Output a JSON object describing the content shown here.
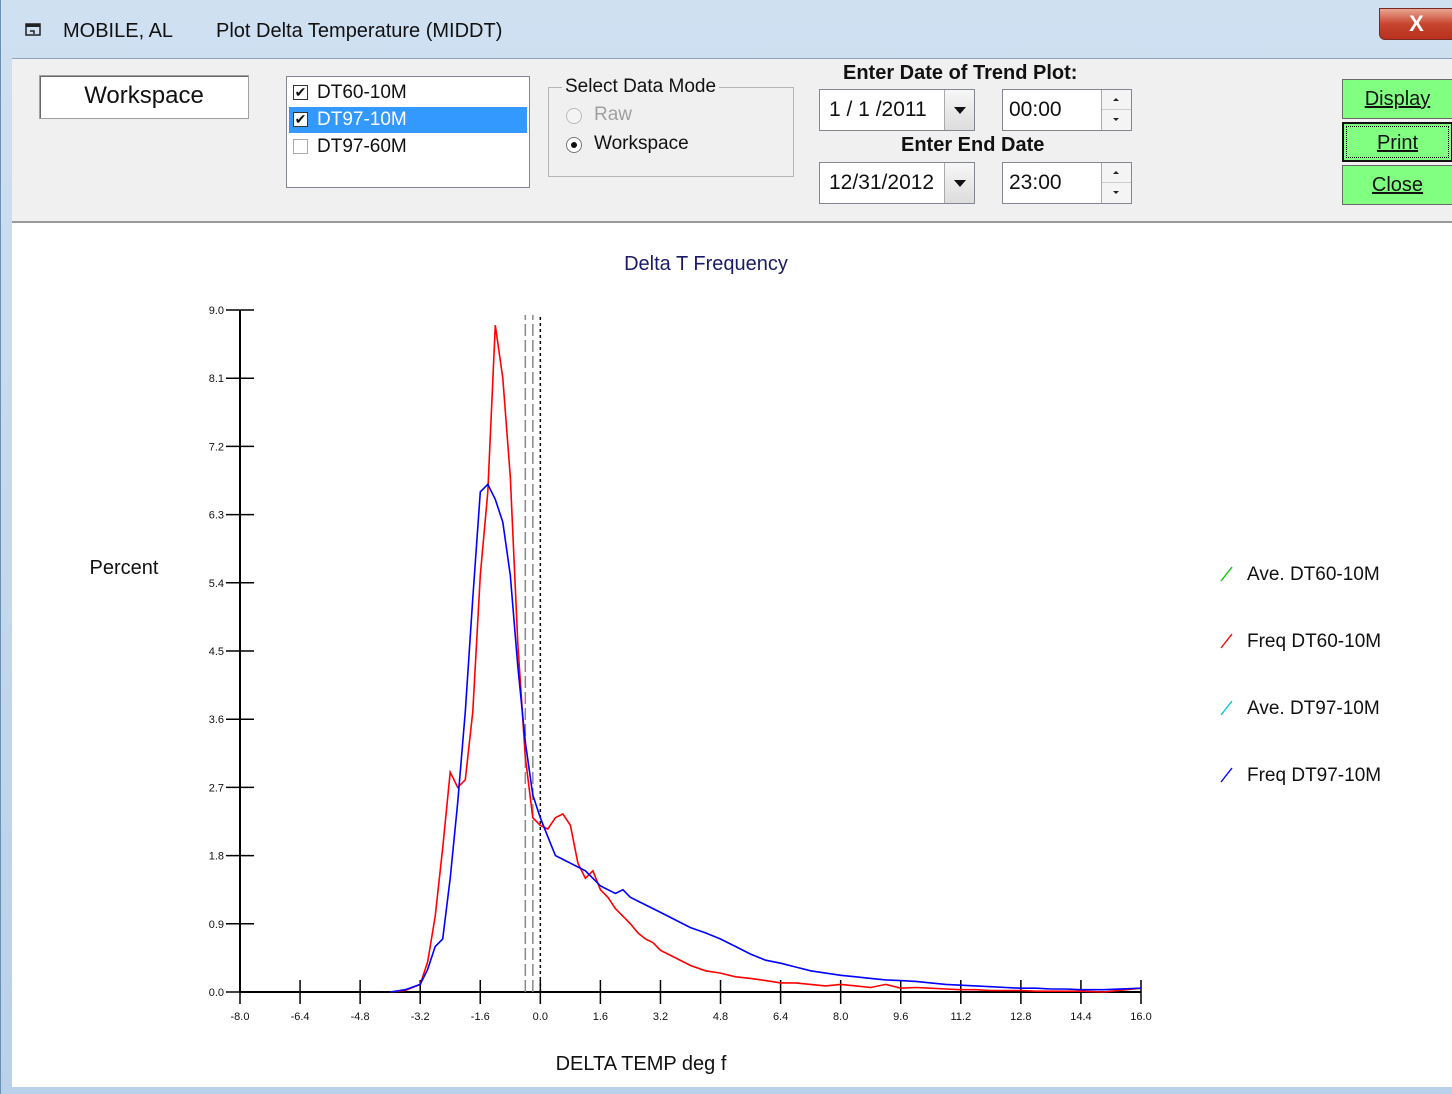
{
  "window": {
    "city": "MOBILE, AL",
    "title": "Plot Delta Temperature (MIDDT)",
    "close_label": "X"
  },
  "workspace_label": "Workspace",
  "datasets": [
    {
      "label": "DT60-10M",
      "checked": true,
      "selected": false
    },
    {
      "label": "DT97-10M",
      "checked": true,
      "selected": true
    },
    {
      "label": "DT97-60M",
      "checked": false,
      "selected": false
    }
  ],
  "data_mode": {
    "title": "Select Data Mode",
    "options": [
      {
        "label": "Raw",
        "selected": false,
        "enabled": false
      },
      {
        "label": "Workspace",
        "selected": true,
        "enabled": true
      }
    ]
  },
  "dates": {
    "start_label": "Enter Date of Trend Plot:",
    "start_date": "1 / 1 /2011",
    "start_time": "00:00",
    "end_label": "Enter End Date",
    "end_date": "12/31/2012",
    "end_time": "23:00"
  },
  "buttons": {
    "display": "Display",
    "print": "Print",
    "close": "Close",
    "button_color": "#80ff80"
  },
  "chart_data": {
    "type": "line",
    "title": "Delta T Frequency",
    "xlabel": "DELTA TEMP deg f",
    "ylabel": "Percent",
    "xlim": [
      -8.0,
      16.0
    ],
    "ylim": [
      0.0,
      9.0
    ],
    "xticks": [
      "-8.0",
      "-6.4",
      "-4.8",
      "-3.2",
      "-1.6",
      "0.0",
      "1.6",
      "3.2",
      "4.8",
      "6.4",
      "8.0",
      "9.6",
      "11.2",
      "12.8",
      "14.4",
      "16.0"
    ],
    "yticks": [
      "0.0",
      "0.9",
      "1.8",
      "2.7",
      "3.6",
      "4.5",
      "5.4",
      "6.3",
      "7.2",
      "8.1",
      "9.0"
    ],
    "legend_position": "right",
    "series": [
      {
        "name": "Ave. DT60-10M",
        "color": "#00cc00",
        "type": "vline",
        "x": -0.3
      },
      {
        "name": "Freq DT60-10M",
        "color": "#ff0000",
        "type": "line",
        "x": [
          -4.0,
          -3.6,
          -3.2,
          -3.0,
          -2.8,
          -2.6,
          -2.4,
          -2.2,
          -2.0,
          -1.8,
          -1.6,
          -1.4,
          -1.2,
          -1.0,
          -0.8,
          -0.6,
          -0.4,
          -0.2,
          0.0,
          0.2,
          0.4,
          0.6,
          0.8,
          1.0,
          1.2,
          1.4,
          1.6,
          1.8,
          2.0,
          2.2,
          2.4,
          2.6,
          2.8,
          3.0,
          3.2,
          3.6,
          4.0,
          4.4,
          4.8,
          5.2,
          5.6,
          6.0,
          6.4,
          6.8,
          7.2,
          7.6,
          8.0,
          8.4,
          8.8,
          9.2,
          9.6,
          10.0,
          10.4,
          10.8,
          11.2,
          11.6,
          12.0,
          12.4,
          12.8,
          13.2,
          13.6,
          14.0,
          14.4,
          15.0,
          16.0
        ],
        "values": [
          0.0,
          0.02,
          0.1,
          0.4,
          1.0,
          1.9,
          2.9,
          2.7,
          2.8,
          3.7,
          5.5,
          6.6,
          8.8,
          8.1,
          6.8,
          4.6,
          3.1,
          2.3,
          2.2,
          2.15,
          2.3,
          2.35,
          2.2,
          1.7,
          1.5,
          1.6,
          1.35,
          1.25,
          1.1,
          1.0,
          0.9,
          0.78,
          0.7,
          0.65,
          0.55,
          0.45,
          0.35,
          0.28,
          0.25,
          0.2,
          0.18,
          0.15,
          0.12,
          0.12,
          0.1,
          0.08,
          0.1,
          0.08,
          0.06,
          0.1,
          0.05,
          0.06,
          0.05,
          0.04,
          0.03,
          0.03,
          0.02,
          0.02,
          0.02,
          0.01,
          0.01,
          0.01,
          0.01,
          0.0,
          0.05
        ]
      },
      {
        "name": "Ave. DT97-10M",
        "color": "#00cccc",
        "type": "vline",
        "x": -0.1
      },
      {
        "name": "Freq DT97-10M",
        "color": "#0000ff",
        "type": "line",
        "x": [
          -4.0,
          -3.6,
          -3.2,
          -3.0,
          -2.8,
          -2.6,
          -2.4,
          -2.2,
          -2.0,
          -1.8,
          -1.6,
          -1.4,
          -1.2,
          -1.0,
          -0.8,
          -0.6,
          -0.4,
          -0.2,
          0.0,
          0.2,
          0.4,
          0.6,
          0.8,
          1.0,
          1.2,
          1.4,
          1.6,
          1.8,
          2.0,
          2.2,
          2.4,
          2.6,
          2.8,
          3.0,
          3.2,
          3.6,
          4.0,
          4.4,
          4.8,
          5.2,
          5.6,
          6.0,
          6.4,
          6.8,
          7.2,
          7.6,
          8.0,
          8.4,
          8.8,
          9.2,
          9.6,
          10.0,
          10.4,
          10.8,
          11.2,
          11.6,
          12.0,
          12.4,
          12.8,
          13.2,
          13.6,
          14.0,
          14.4,
          15.0,
          16.0
        ],
        "values": [
          0.0,
          0.03,
          0.1,
          0.3,
          0.6,
          0.7,
          1.5,
          2.5,
          3.7,
          5.2,
          6.6,
          6.7,
          6.5,
          6.2,
          5.5,
          4.3,
          3.3,
          2.6,
          2.3,
          2.05,
          1.8,
          1.75,
          1.7,
          1.65,
          1.6,
          1.5,
          1.4,
          1.35,
          1.3,
          1.35,
          1.25,
          1.2,
          1.15,
          1.1,
          1.05,
          0.95,
          0.85,
          0.78,
          0.7,
          0.6,
          0.5,
          0.42,
          0.38,
          0.33,
          0.28,
          0.25,
          0.22,
          0.2,
          0.18,
          0.16,
          0.15,
          0.14,
          0.12,
          0.1,
          0.09,
          0.08,
          0.07,
          0.06,
          0.05,
          0.05,
          0.04,
          0.04,
          0.03,
          0.03,
          0.05
        ]
      }
    ],
    "vlines": [
      {
        "x": -0.4,
        "style": "dashed",
        "color": "#888888"
      },
      {
        "x": -0.2,
        "style": "dashed",
        "color": "#888888"
      },
      {
        "x": 0.0,
        "style": "dotted",
        "color": "#000000"
      }
    ],
    "axis_color": "#000000",
    "title_color": "#1a1a6a"
  }
}
